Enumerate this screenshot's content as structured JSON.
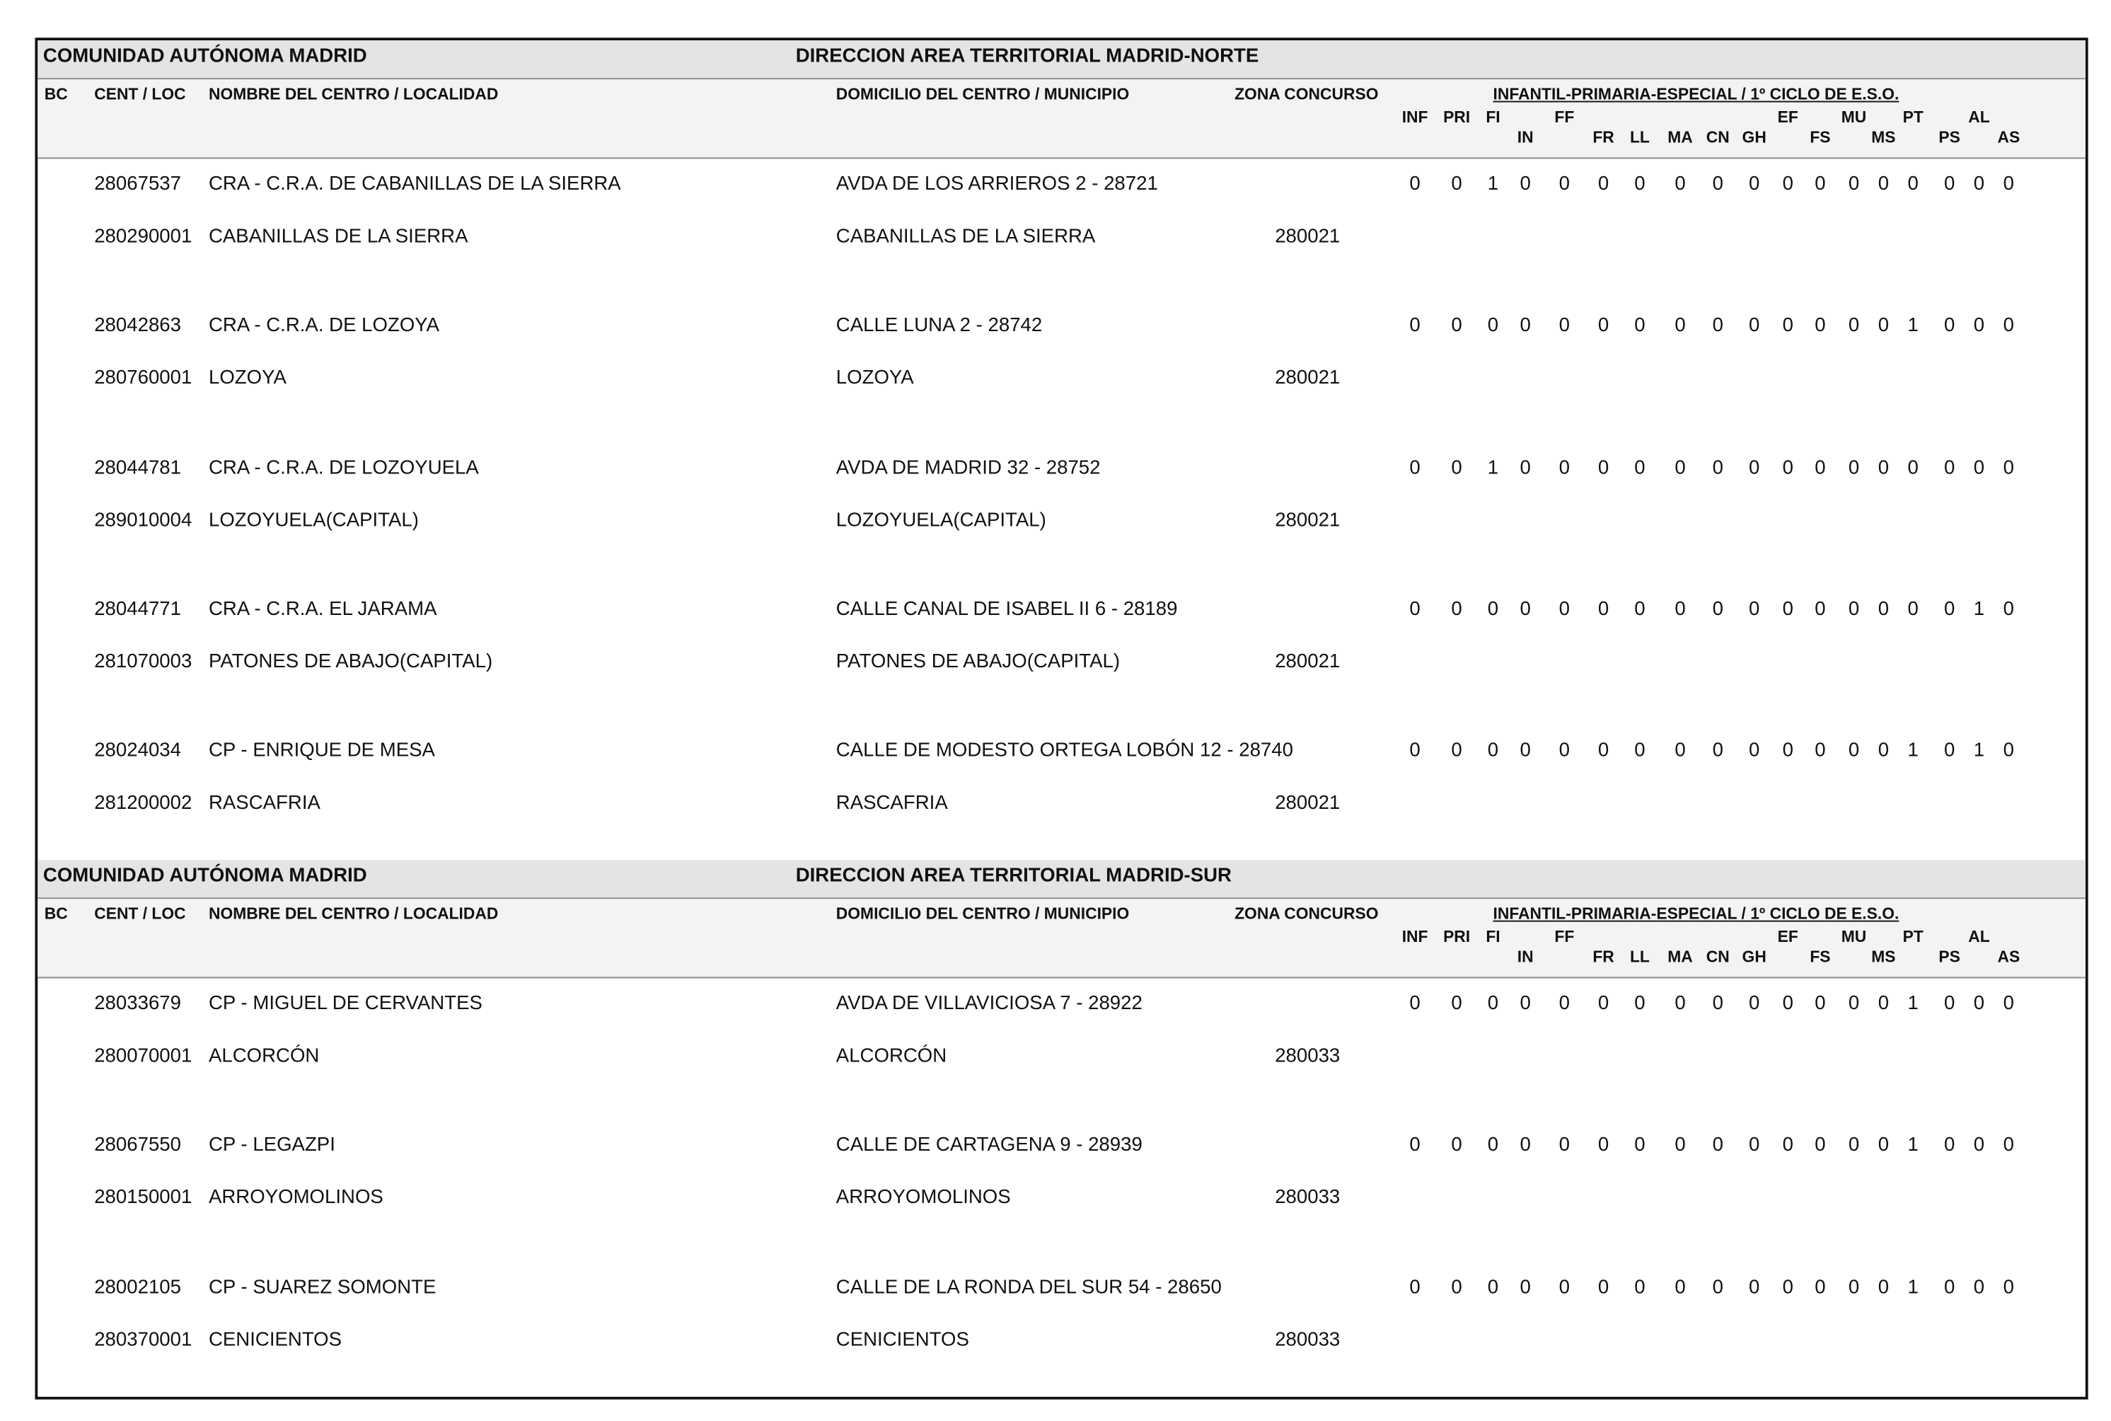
{
  "sections": [
    {
      "community": "COMUNIDAD AUTÓNOMA MADRID",
      "direction": "DIRECCION AREA TERRITORIAL MADRID-NORTE",
      "columns": {
        "bc": "BC",
        "cent_loc": "CENT / LOC",
        "nombre": "NOMBRE DEL CENTRO / LOCALIDAD",
        "domicilio": "DOMICILIO DEL CENTRO / MUNICIPIO",
        "zona": "ZONA CONCURSO",
        "group": "INFANTIL-PRIMARIA-ESPECIAL / 1º CICLO DE E.S.O.",
        "sub": [
          "INF",
          "PRI",
          "FI",
          "IN",
          "FF",
          "FR",
          "LL",
          "MA",
          "CN",
          "GH",
          "EF",
          "FS",
          "MU",
          "MS",
          "PT",
          "PS",
          "AL",
          "AS"
        ]
      },
      "centers": [
        {
          "code": "28067537",
          "name": "CRA - C.R.A. DE CABANILLAS DE LA SIERRA",
          "address": "AVDA DE LOS ARRIEROS 2 - 28721",
          "values": [
            0,
            0,
            1,
            0,
            0,
            0,
            0,
            0,
            0,
            0,
            0,
            0,
            0,
            0,
            0,
            0,
            0,
            0
          ],
          "loc_code": "280290001",
          "locality": "CABANILLAS DE LA SIERRA",
          "municipality": "CABANILLAS DE LA SIERRA",
          "zone": "280021"
        },
        {
          "code": "28042863",
          "name": "CRA - C.R.A. DE LOZOYA",
          "address": "CALLE LUNA 2 - 28742",
          "values": [
            0,
            0,
            0,
            0,
            0,
            0,
            0,
            0,
            0,
            0,
            0,
            0,
            0,
            0,
            1,
            0,
            0,
            0
          ],
          "loc_code": "280760001",
          "locality": "LOZOYA",
          "municipality": "LOZOYA",
          "zone": "280021"
        },
        {
          "code": "28044781",
          "name": "CRA - C.R.A. DE LOZOYUELA",
          "address": "AVDA DE MADRID 32 - 28752",
          "values": [
            0,
            0,
            1,
            0,
            0,
            0,
            0,
            0,
            0,
            0,
            0,
            0,
            0,
            0,
            0,
            0,
            0,
            0
          ],
          "loc_code": "289010004",
          "locality": "LOZOYUELA(CAPITAL)",
          "municipality": "LOZOYUELA(CAPITAL)",
          "zone": "280021"
        },
        {
          "code": "28044771",
          "name": "CRA - C.R.A. EL JARAMA",
          "address": "CALLE CANAL DE ISABEL II 6 - 28189",
          "values": [
            0,
            0,
            0,
            0,
            0,
            0,
            0,
            0,
            0,
            0,
            0,
            0,
            0,
            0,
            0,
            0,
            1,
            0
          ],
          "loc_code": "281070003",
          "locality": "PATONES DE ABAJO(CAPITAL)",
          "municipality": "PATONES DE ABAJO(CAPITAL)",
          "zone": "280021"
        },
        {
          "code": "28024034",
          "name": "CP - ENRIQUE DE MESA",
          "address": "CALLE DE MODESTO ORTEGA LOBÓN 12 - 28740",
          "values": [
            0,
            0,
            0,
            0,
            0,
            0,
            0,
            0,
            0,
            0,
            0,
            0,
            0,
            0,
            1,
            0,
            1,
            0
          ],
          "loc_code": "281200002",
          "locality": "RASCAFRIA",
          "municipality": "RASCAFRIA",
          "zone": "280021"
        }
      ]
    },
    {
      "community": "COMUNIDAD AUTÓNOMA MADRID",
      "direction": "DIRECCION AREA TERRITORIAL MADRID-SUR",
      "columns": {
        "bc": "BC",
        "cent_loc": "CENT / LOC",
        "nombre": "NOMBRE DEL CENTRO / LOCALIDAD",
        "domicilio": "DOMICILIO DEL CENTRO / MUNICIPIO",
        "zona": "ZONA CONCURSO",
        "group": "INFANTIL-PRIMARIA-ESPECIAL / 1º CICLO DE E.S.O.",
        "sub": [
          "INF",
          "PRI",
          "FI",
          "IN",
          "FF",
          "FR",
          "LL",
          "MA",
          "CN",
          "GH",
          "EF",
          "FS",
          "MU",
          "MS",
          "PT",
          "PS",
          "AL",
          "AS"
        ]
      },
      "centers": [
        {
          "code": "28033679",
          "name": "CP - MIGUEL DE CERVANTES",
          "address": "AVDA DE VILLAVICIOSA 7 - 28922",
          "values": [
            0,
            0,
            0,
            0,
            0,
            0,
            0,
            0,
            0,
            0,
            0,
            0,
            0,
            0,
            1,
            0,
            0,
            0
          ],
          "loc_code": "280070001",
          "locality": "ALCORCÓN",
          "municipality": "ALCORCÓN",
          "zone": "280033"
        },
        {
          "code": "28067550",
          "name": "CP - LEGAZPI",
          "address": "CALLE DE CARTAGENA 9 - 28939",
          "values": [
            0,
            0,
            0,
            0,
            0,
            0,
            0,
            0,
            0,
            0,
            0,
            0,
            0,
            0,
            1,
            0,
            0,
            0
          ],
          "loc_code": "280150001",
          "locality": "ARROYOMOLINOS",
          "municipality": "ARROYOMOLINOS",
          "zone": "280033"
        },
        {
          "code": "28002105",
          "name": "CP - SUAREZ SOMONTE",
          "address": "CALLE DE LA RONDA DEL SUR 54 - 28650",
          "values": [
            0,
            0,
            0,
            0,
            0,
            0,
            0,
            0,
            0,
            0,
            0,
            0,
            0,
            0,
            1,
            0,
            0,
            0
          ],
          "loc_code": "280370001",
          "locality": "CENICIENTOS",
          "municipality": "CENICIENTOS",
          "zone": "280033"
        }
      ]
    }
  ]
}
